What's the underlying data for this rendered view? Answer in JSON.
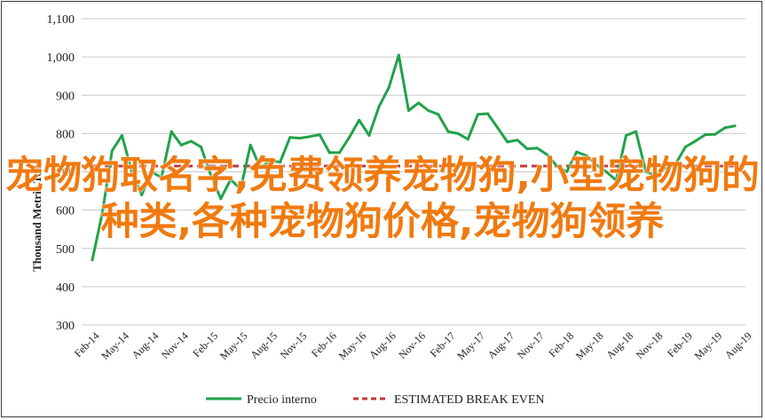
{
  "chart_data": {
    "type": "line",
    "ylabel": "Thousand Metric Tons",
    "ylim": [
      300,
      1100
    ],
    "y_ticks": [
      "300",
      "400",
      "500",
      "600",
      "700",
      "800",
      "900",
      "1,000",
      "1,100"
    ],
    "y_tick_values": [
      300,
      400,
      500,
      600,
      700,
      800,
      900,
      1000,
      1100
    ],
    "x_ticks": [
      "Feb-14",
      "May-14",
      "Aug-14",
      "Nov-14",
      "Feb-15",
      "May-15",
      "Aug-15",
      "Nov-15",
      "Feb-16",
      "May-16",
      "Aug-16",
      "Nov-16",
      "Feb-17",
      "May-17",
      "Aug-17",
      "Nov-17",
      "Feb-18",
      "May-18",
      "Aug-18",
      "Nov-18",
      "Feb-19",
      "May-19",
      "Aug-19"
    ],
    "grid": "horizontal",
    "legend_position": "bottom",
    "series": [
      {
        "name": "Precio interno",
        "color": "#22a24a",
        "style": "solid",
        "values": [
          470,
          590,
          755,
          795,
          700,
          640,
          700,
          685,
          805,
          770,
          780,
          765,
          690,
          630,
          680,
          655,
          770,
          710,
          730,
          725,
          790,
          788,
          792,
          797,
          750,
          750,
          790,
          835,
          795,
          870,
          920,
          1005,
          860,
          880,
          860,
          850,
          805,
          800,
          785,
          850,
          852,
          815,
          778,
          783,
          760,
          762,
          745,
          715,
          700,
          752,
          742,
          718,
          700,
          678,
          795,
          805,
          700,
          690,
          710,
          720,
          765,
          780,
          797,
          798,
          815,
          820
        ]
      },
      {
        "name": "ESTIMATED BREAK EVEN",
        "color": "#c0393a",
        "style": "dashed",
        "values": [
          715,
          715
        ]
      }
    ]
  },
  "overlay": {
    "text": "宠物狗取名字,免费领养宠物狗,小型宠物狗的种类,各种宠物狗价格,宠物狗领养",
    "color": "#f07a10"
  }
}
